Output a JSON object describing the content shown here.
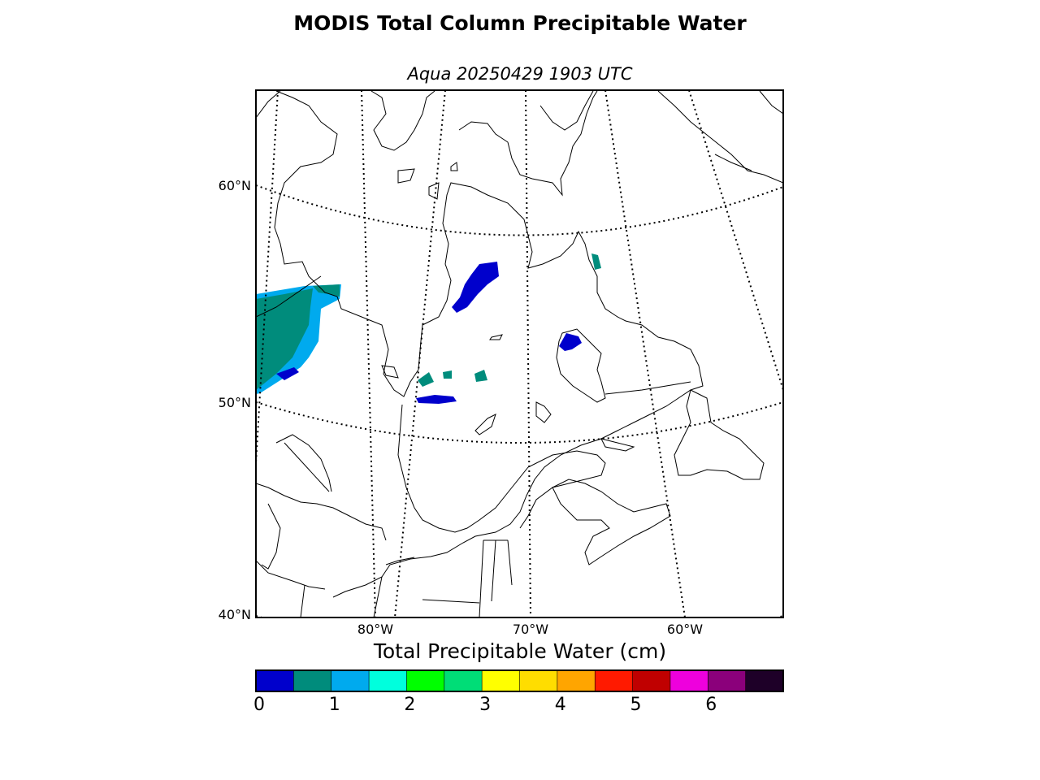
{
  "title": "MODIS Total Column Precipitable Water",
  "subtitle": "Aqua 20250429 1903 UTC",
  "map": {
    "lat_labels": [
      {
        "label": "60°N",
        "lat": 60
      },
      {
        "label": "50°N",
        "lat": 50
      },
      {
        "label": "40°N",
        "lat": 40
      }
    ],
    "lon_labels": [
      {
        "label": "80°W",
        "lon": -80
      },
      {
        "label": "70°W",
        "lon": -70
      },
      {
        "label": "60°W",
        "lon": -60
      }
    ]
  },
  "colorbar": {
    "title": "Total Precipitable Water (cm)",
    "colors": [
      "#0000cc",
      "#008c7c",
      "#00aaee",
      "#00ffdd",
      "#00ff00",
      "#00dd77",
      "#ffff00",
      "#ffdd00",
      "#ffa500",
      "#ff1a00",
      "#c00000",
      "#ee00dd",
      "#8b007b",
      "#1e0028"
    ],
    "ticks": [
      "0",
      "1",
      "2",
      "3",
      "4",
      "5",
      "6"
    ]
  }
}
